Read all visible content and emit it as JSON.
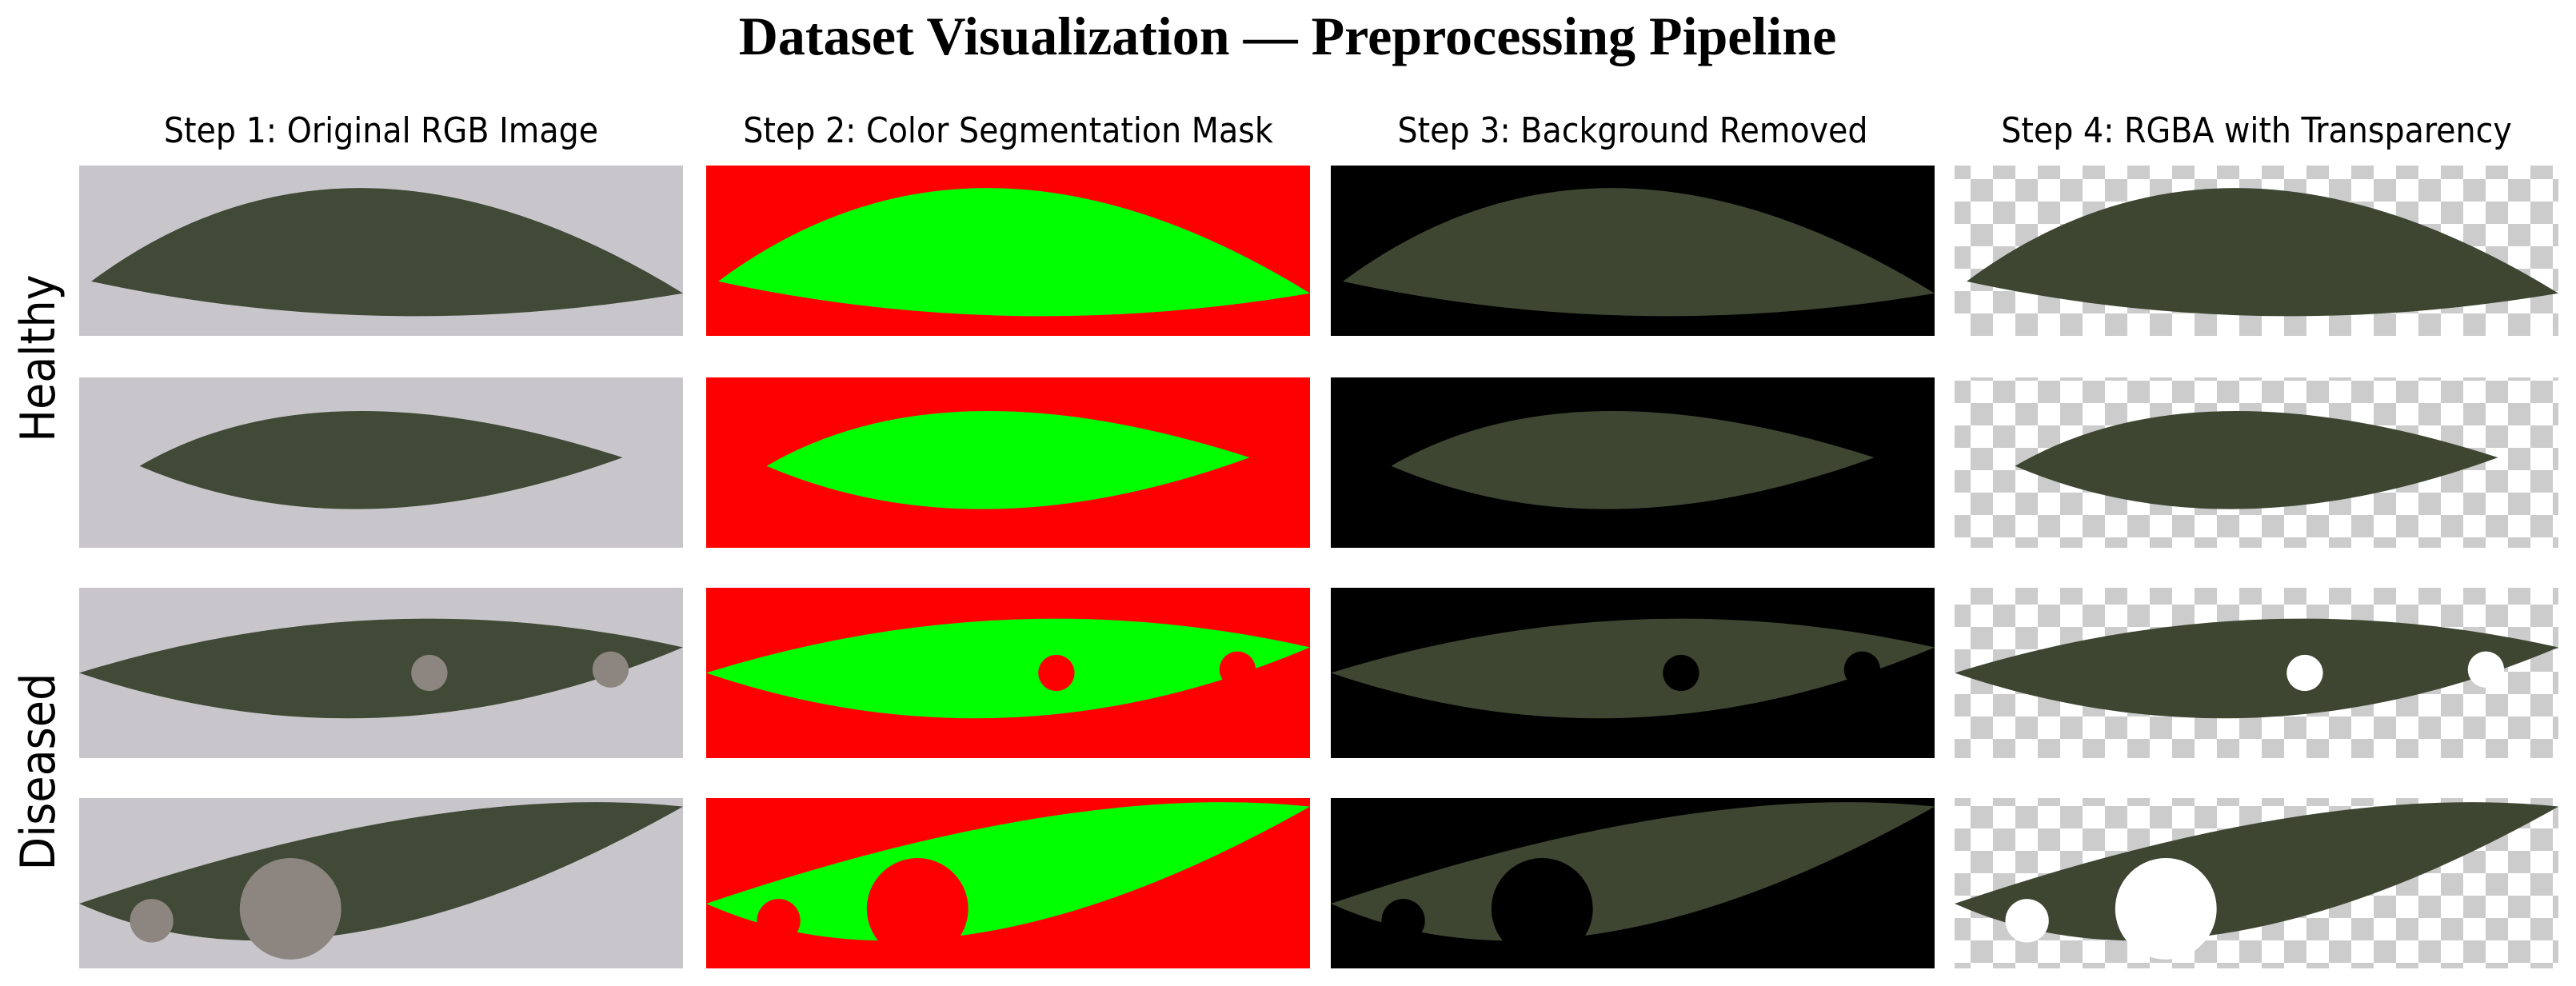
{
  "title": "Dataset Visualization — Preprocessing Pipeline",
  "columns": [
    "Step 1: Original RGB Image",
    "Step 2: Color Segmentation Mask",
    "Step 3: Background Removed",
    "Step 4: RGBA with Transparency"
  ],
  "rows": [
    "Healthy",
    "Diseased"
  ]
}
